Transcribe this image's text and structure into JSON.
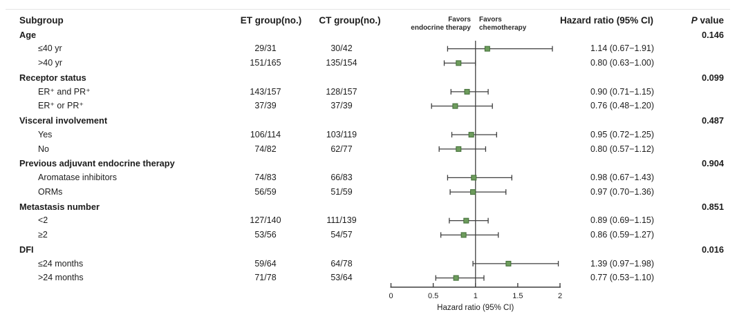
{
  "header": {
    "subgroup": "Subgroup",
    "et_group": "ET group(no.)",
    "ct_group": "CT group(no.)",
    "hazard_ratio": "Hazard ratio (95% CI)",
    "p_italic": "P",
    "p_rest": " value"
  },
  "favors": {
    "left_line1": "Favors",
    "left_line2": "endocrine therapy",
    "right_line1": "Favors",
    "right_line2": "chemotherapy"
  },
  "colors": {
    "marker_fill": "#6d9c5c",
    "marker_stroke": "#3f6c35",
    "ci_line": "#3d3d3d",
    "ref_line": "#4d4d4d",
    "axis_line": "#3d3d3d",
    "text": "#1c1c1c"
  },
  "chart_data": {
    "type": "forest",
    "xlabel": "Hazard ratio (95% CI)",
    "xlim": [
      0,
      2
    ],
    "ref_line": 1,
    "x_ticks": [
      {
        "value": 0,
        "label": "0"
      },
      {
        "value": 0.5,
        "label": "0.5"
      },
      {
        "value": 1,
        "label": "1"
      },
      {
        "value": 1.5,
        "label": "1.5"
      },
      {
        "value": 2,
        "label": "2"
      }
    ],
    "rows": [
      {
        "type": "group",
        "label": "Age",
        "p": "0.146"
      },
      {
        "type": "item",
        "label": "≤40 yr",
        "et": "29/31",
        "ct": "30/42",
        "hr": 1.14,
        "lo": 0.67,
        "hi": 1.91,
        "hr_text": "1.14 (0.67−1.91)"
      },
      {
        "type": "item",
        "label": ">40 yr",
        "et": "151/165",
        "ct": "135/154",
        "hr": 0.8,
        "lo": 0.63,
        "hi": 1.0,
        "hr_text": "0.80 (0.63−1.00)"
      },
      {
        "type": "group",
        "label": "Receptor status",
        "p": "0.099"
      },
      {
        "type": "item",
        "label": "ER⁺ and PR⁺",
        "et": "143/157",
        "ct": "128/157",
        "hr": 0.9,
        "lo": 0.71,
        "hi": 1.15,
        "hr_text": "0.90 (0.71−1.15)"
      },
      {
        "type": "item",
        "label": "ER⁺ or PR⁺",
        "et": "37/39",
        "ct": "37/39",
        "hr": 0.76,
        "lo": 0.48,
        "hi": 1.2,
        "hr_text": "0.76 (0.48−1.20)"
      },
      {
        "type": "group",
        "label": "Visceral involvement",
        "p": "0.487"
      },
      {
        "type": "item",
        "label": "Yes",
        "et": "106/114",
        "ct": "103/119",
        "hr": 0.95,
        "lo": 0.72,
        "hi": 1.25,
        "hr_text": "0.95 (0.72−1.25)"
      },
      {
        "type": "item",
        "label": "No",
        "et": "74/82",
        "ct": "62/77",
        "hr": 0.8,
        "lo": 0.57,
        "hi": 1.12,
        "hr_text": "0.80 (0.57−1.12)"
      },
      {
        "type": "group",
        "label": "Previous adjuvant endocrine therapy",
        "p": "0.904"
      },
      {
        "type": "item",
        "label": "Aromatase inhibitors",
        "et": "74/83",
        "ct": "66/83",
        "hr": 0.98,
        "lo": 0.67,
        "hi": 1.43,
        "hr_text": "0.98 (0.67−1.43)"
      },
      {
        "type": "item",
        "label": "ORMs",
        "et": "56/59",
        "ct": "51/59",
        "hr": 0.97,
        "lo": 0.7,
        "hi": 1.36,
        "hr_text": "0.97 (0.70−1.36)"
      },
      {
        "type": "group",
        "label": "Metastasis number",
        "p": "0.851"
      },
      {
        "type": "item",
        "label": "<2",
        "et": "127/140",
        "ct": "111/139",
        "hr": 0.89,
        "lo": 0.69,
        "hi": 1.15,
        "hr_text": "0.89 (0.69−1.15)"
      },
      {
        "type": "item",
        "label": "≥2",
        "et": "53/56",
        "ct": "54/57",
        "hr": 0.86,
        "lo": 0.59,
        "hi": 1.27,
        "hr_text": "0.86 (0.59−1.27)"
      },
      {
        "type": "group",
        "label": "DFI",
        "p": "0.016"
      },
      {
        "type": "item",
        "label": "≤24 months",
        "et": "59/64",
        "ct": "64/78",
        "hr": 1.39,
        "lo": 0.97,
        "hi": 1.98,
        "hr_text": "1.39 (0.97−1.98)"
      },
      {
        "type": "item",
        "label": ">24 months",
        "et": "71/78",
        "ct": "53/64",
        "hr": 0.77,
        "lo": 0.53,
        "hi": 1.1,
        "hr_text": "0.77 (0.53−1.10)"
      }
    ]
  }
}
